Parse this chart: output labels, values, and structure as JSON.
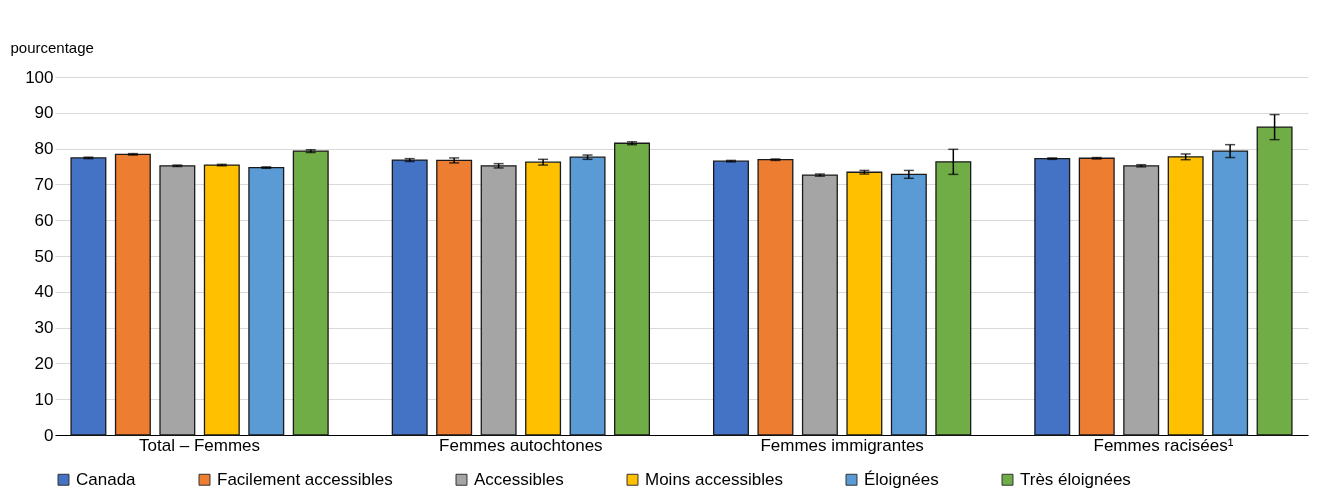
{
  "chart_data": {
    "type": "bar",
    "ylabel": "pourcentage",
    "categories": [
      "Total – Femmes",
      "Femmes autochtones",
      "Femmes immigrantes",
      "Femmes racisées¹"
    ],
    "series": [
      {
        "name": "Canada",
        "color": "#4472c4",
        "values": [
          77.4,
          76.8,
          76.5,
          77.2
        ],
        "errors": [
          0.2,
          0.4,
          0.2,
          0.2
        ]
      },
      {
        "name": "Facilement accessibles",
        "color": "#ed7d31",
        "values": [
          78.4,
          76.7,
          76.9,
          77.3
        ],
        "errors": [
          0.2,
          0.7,
          0.2,
          0.2
        ]
      },
      {
        "name": "Accessibles",
        "color": "#a5a5a5",
        "values": [
          75.2,
          75.2,
          72.6,
          75.2
        ],
        "errors": [
          0.2,
          0.6,
          0.3,
          0.3
        ]
      },
      {
        "name": "Moins accessibles",
        "color": "#ffc000",
        "values": [
          75.4,
          76.2,
          73.4,
          77.7
        ],
        "errors": [
          0.2,
          0.8,
          0.5,
          0.8
        ]
      },
      {
        "name": "Éloignées",
        "color": "#5b9bd5",
        "values": [
          74.7,
          77.6,
          72.8,
          79.3
        ],
        "errors": [
          0.2,
          0.6,
          1.1,
          1.8
        ]
      },
      {
        "name": "Très éloignées",
        "color": "#70ad47",
        "values": [
          79.3,
          81.5,
          76.3,
          86.0
        ],
        "errors": [
          0.4,
          0.4,
          3.5,
          3.5
        ]
      }
    ],
    "ylim": [
      0,
      100
    ],
    "yticks": [
      0,
      10,
      20,
      30,
      40,
      50,
      60,
      70,
      80,
      90,
      100
    ],
    "grid": "y",
    "legend": "bottom"
  }
}
